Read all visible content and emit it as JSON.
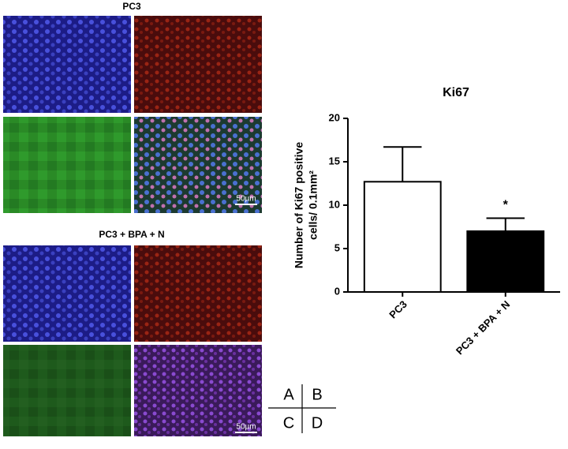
{
  "panels": [
    {
      "title": "PC3",
      "scale_bar": "50µm"
    },
    {
      "title": "PC3 + BPA + N",
      "scale_bar": "50µm"
    }
  ],
  "quadrant_key": [
    "A",
    "B",
    "C",
    "D"
  ],
  "chart_data": {
    "type": "bar",
    "title": "Ki67",
    "y_label": [
      "Number of Ki67 positive",
      "cells/ 0.1mm²"
    ],
    "categories": [
      "PC3",
      "PC3 + BPA + N"
    ],
    "values": [
      12.7,
      7.0
    ],
    "errors": [
      4.0,
      1.5
    ],
    "value_annotations": [
      null,
      "*"
    ],
    "colors": [
      "#ffffff",
      "#000000"
    ],
    "ylim": [
      0,
      20
    ],
    "yticks": [
      0,
      5,
      10,
      15,
      20
    ]
  }
}
